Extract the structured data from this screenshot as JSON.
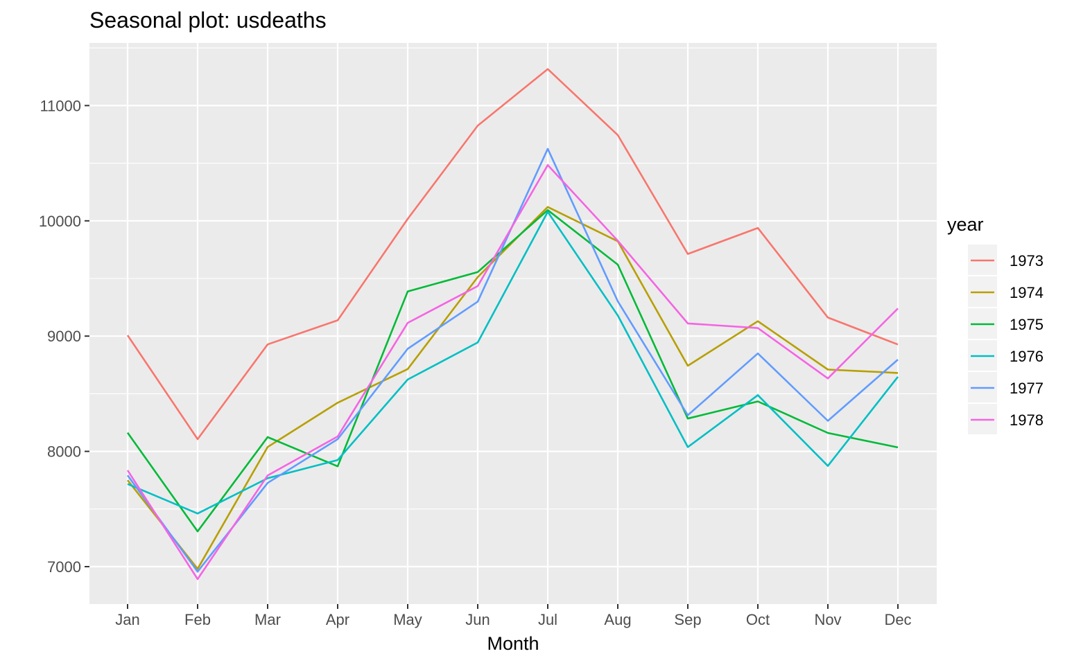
{
  "chart_data": {
    "type": "line",
    "title": "Seasonal plot: usdeaths",
    "xlabel": "Month",
    "ylabel": "",
    "categories": [
      "Jan",
      "Feb",
      "Mar",
      "Apr",
      "May",
      "Jun",
      "Jul",
      "Aug",
      "Sep",
      "Oct",
      "Nov",
      "Dec"
    ],
    "y_ticks": [
      7000,
      8000,
      9000,
      10000,
      11000
    ],
    "ylim": [
      6700,
      11520
    ],
    "grid": true,
    "legend": {
      "title": "year",
      "placement": "right"
    },
    "series": [
      {
        "name": "1973",
        "color": "#F8766D",
        "values": [
          9007,
          8106,
          8928,
          9137,
          10017,
          10826,
          11317,
          10744,
          9713,
          9938,
          9161,
          8927
        ]
      },
      {
        "name": "1974",
        "color": "#B79F00",
        "values": [
          7750,
          6981,
          8038,
          8422,
          8714,
          9512,
          10120,
          9823,
          8743,
          9129,
          8710,
          8680
        ]
      },
      {
        "name": "1975",
        "color": "#00BA38",
        "values": [
          8162,
          7306,
          8124,
          7870,
          9387,
          9556,
          10093,
          9620,
          8285,
          8433,
          8160,
          8034
        ]
      },
      {
        "name": "1976",
        "color": "#00BFC4",
        "values": [
          7717,
          7461,
          7767,
          7925,
          8623,
          8945,
          10078,
          9179,
          8037,
          8488,
          7874,
          8647
        ]
      },
      {
        "name": "1977",
        "color": "#619CFF",
        "values": [
          7792,
          6957,
          7726,
          8106,
          8890,
          9299,
          10625,
          9302,
          8314,
          8850,
          8265,
          8796
        ]
      },
      {
        "name": "1978",
        "color": "#F564E3",
        "values": [
          7836,
          6892,
          7791,
          8129,
          9115,
          9434,
          10484,
          9827,
          9110,
          9070,
          8633,
          9240
        ]
      }
    ]
  }
}
